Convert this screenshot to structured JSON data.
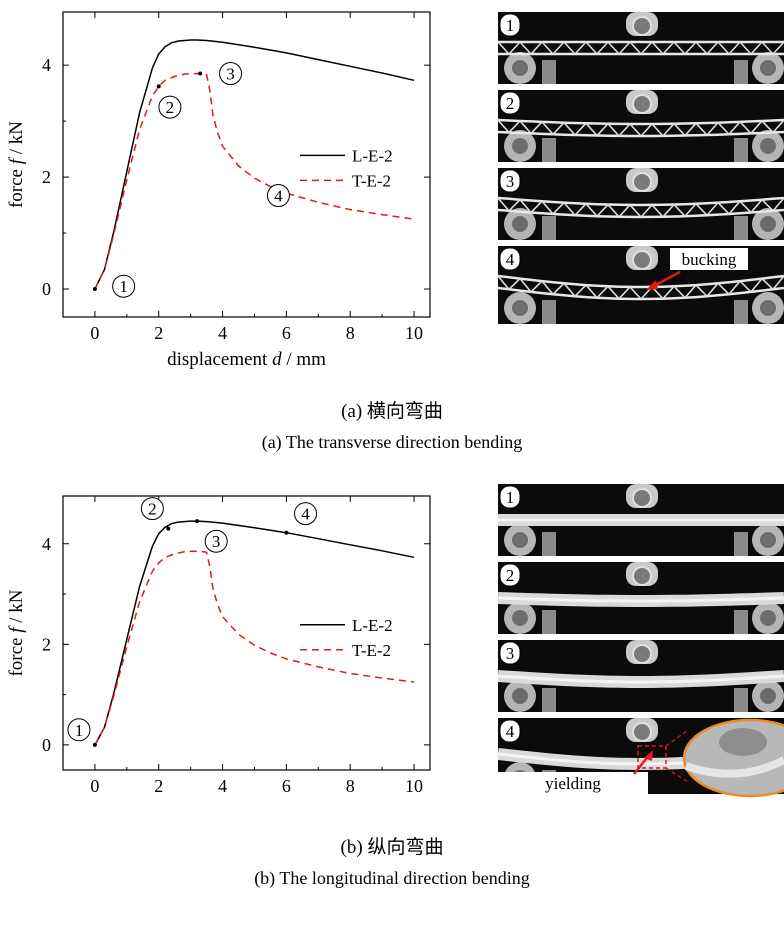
{
  "chart_data": [
    {
      "type": "line",
      "panel": "a",
      "xlabel_prefix": "displacement ",
      "xlabel_var": "d",
      "xlabel_unit": " / mm",
      "ylabel_prefix": "force ",
      "ylabel_var": "f",
      "ylabel_unit": " / kN",
      "xlim": [
        -1,
        10.5
      ],
      "ylim": [
        -0.5,
        4.95
      ],
      "xticks": [
        0,
        2,
        4,
        6,
        8,
        10
      ],
      "yticks": [
        0,
        2,
        4
      ],
      "legend_position": "right",
      "series": [
        {
          "name": "L-E-2",
          "color": "#000000",
          "dash": "solid",
          "x": [
            0,
            0.3,
            0.6,
            1.0,
            1.4,
            1.8,
            2.0,
            2.2,
            2.4,
            2.6,
            2.8,
            3.0,
            3.2,
            3.5,
            4.0,
            5.0,
            6.0,
            7.0,
            8.0,
            9.0,
            10.0
          ],
          "y": [
            0,
            0.35,
            1.05,
            2.1,
            3.15,
            3.95,
            4.2,
            4.33,
            4.4,
            4.43,
            4.44,
            4.45,
            4.45,
            4.44,
            4.41,
            4.32,
            4.22,
            4.1,
            3.98,
            3.86,
            3.73
          ]
        },
        {
          "name": "T-E-2",
          "color": "#e31a1c",
          "dash": "dashed",
          "x": [
            0,
            0.3,
            0.6,
            1.0,
            1.4,
            1.8,
            2.0,
            2.2,
            2.5,
            2.8,
            3.0,
            3.3,
            3.5,
            3.6,
            3.7,
            3.85,
            4.0,
            4.5,
            5.0,
            5.5,
            6.0,
            7.0,
            8.0,
            9.0,
            10.0
          ],
          "y": [
            0,
            0.35,
            1.0,
            1.95,
            2.85,
            3.45,
            3.62,
            3.73,
            3.8,
            3.84,
            3.85,
            3.85,
            3.83,
            3.55,
            3.1,
            2.78,
            2.55,
            2.2,
            1.98,
            1.83,
            1.71,
            1.55,
            1.42,
            1.33,
            1.25
          ]
        }
      ],
      "markers": [
        {
          "label": "1",
          "x": 0.0,
          "y": 0.0,
          "lx": 0.9,
          "ly": 0.05
        },
        {
          "label": "2",
          "x": 2.0,
          "y": 3.62,
          "lx": 2.35,
          "ly": 3.25
        },
        {
          "label": "3",
          "x": 3.3,
          "y": 3.85,
          "lx": 4.25,
          "ly": 3.85
        },
        {
          "label": "4",
          "x": 6.0,
          "y": 1.71,
          "lx": 5.75,
          "ly": 1.67
        }
      ]
    },
    {
      "type": "line",
      "panel": "b",
      "xlabel_prefix": "displacement ",
      "xlabel_var": "d",
      "xlabel_unit": " / mm",
      "ylabel_prefix": "force ",
      "ylabel_var": "f",
      "ylabel_unit": " / kN",
      "xlim": [
        -1,
        10.5
      ],
      "ylim": [
        -0.5,
        4.95
      ],
      "xticks": [
        0,
        2,
        4,
        6,
        8,
        10
      ],
      "yticks": [
        0,
        2,
        4
      ],
      "legend_position": "right",
      "series": [
        {
          "name": "L-E-2",
          "color": "#000000",
          "dash": "solid",
          "x": [
            0,
            0.3,
            0.6,
            1.0,
            1.4,
            1.8,
            2.0,
            2.2,
            2.4,
            2.6,
            2.8,
            3.0,
            3.2,
            3.5,
            4.0,
            5.0,
            6.0,
            7.0,
            8.0,
            9.0,
            10.0
          ],
          "y": [
            0,
            0.35,
            1.05,
            2.1,
            3.15,
            3.95,
            4.2,
            4.33,
            4.4,
            4.43,
            4.44,
            4.45,
            4.45,
            4.44,
            4.41,
            4.32,
            4.22,
            4.1,
            3.98,
            3.86,
            3.73
          ]
        },
        {
          "name": "T-E-2",
          "color": "#e31a1c",
          "dash": "dashed",
          "x": [
            0,
            0.3,
            0.6,
            1.0,
            1.4,
            1.8,
            2.0,
            2.2,
            2.5,
            2.8,
            3.0,
            3.3,
            3.5,
            3.6,
            3.7,
            3.85,
            4.0,
            4.5,
            5.0,
            5.5,
            6.0,
            7.0,
            8.0,
            9.0,
            10.0
          ],
          "y": [
            0,
            0.35,
            1.0,
            1.95,
            2.85,
            3.45,
            3.62,
            3.73,
            3.8,
            3.84,
            3.85,
            3.85,
            3.83,
            3.55,
            3.1,
            2.78,
            2.55,
            2.2,
            1.98,
            1.83,
            1.71,
            1.55,
            1.42,
            1.33,
            1.25
          ]
        }
      ],
      "markers": [
        {
          "label": "1",
          "x": 0.0,
          "y": 0.0,
          "lx": -0.5,
          "ly": 0.3
        },
        {
          "label": "2",
          "x": 2.3,
          "y": 4.3,
          "lx": 1.8,
          "ly": 4.7
        },
        {
          "label": "3",
          "x": 3.2,
          "y": 4.45,
          "lx": 3.8,
          "ly": 4.05
        },
        {
          "label": "4",
          "x": 6.0,
          "y": 4.22,
          "lx": 6.6,
          "ly": 4.6
        }
      ]
    }
  ],
  "photos_a": {
    "frames": [
      "1",
      "2",
      "3",
      "4"
    ],
    "annotation": "bucking"
  },
  "photos_b": {
    "frames": [
      "1",
      "2",
      "3",
      "4"
    ],
    "annotation": "yielding"
  },
  "captions": {
    "a_cn": "(a) 横向弯曲",
    "a_en": "(a) The transverse direction bending",
    "b_cn": "(b) 纵向弯曲",
    "b_en": "(b) The longitudinal direction bending"
  },
  "colors": {
    "series_l": "#000000",
    "series_t": "#e31a1c",
    "photo_bg": "#0b0b0b",
    "arrow": "#e31a1c",
    "zoom_ring": "#f08a24"
  }
}
